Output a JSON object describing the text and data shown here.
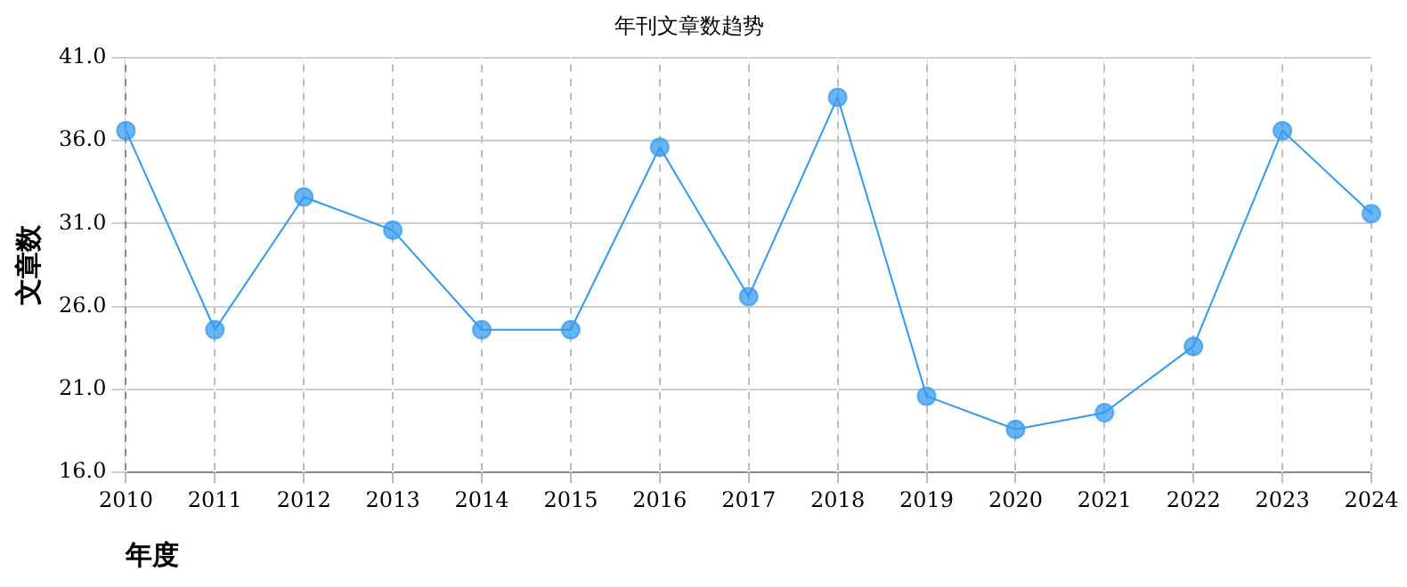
{
  "chart_data": {
    "type": "line",
    "title": "年刊文章数趋势",
    "xlabel": "年度",
    "ylabel": "文章数",
    "categories": [
      "2010",
      "2011",
      "2012",
      "2013",
      "2014",
      "2015",
      "2016",
      "2017",
      "2018",
      "2019",
      "2020",
      "2021",
      "2022",
      "2023",
      "2024"
    ],
    "series": [
      {
        "color": "#3399ee",
        "values": [
          36.6,
          24.6,
          32.6,
          30.6,
          24.6,
          24.6,
          35.6,
          26.6,
          38.6,
          20.6,
          18.6,
          19.6,
          23.6,
          36.6,
          31.6
        ]
      }
    ],
    "ylim": [
      16,
      41
    ],
    "yticks": [
      {
        "value": 16,
        "label": "16.0"
      },
      {
        "value": 21,
        "label": "21.0"
      },
      {
        "value": 26,
        "label": "26.0"
      },
      {
        "value": 31,
        "label": "31.0"
      },
      {
        "value": 36,
        "label": "36.0"
      },
      {
        "value": 41,
        "label": "41.0"
      }
    ],
    "grid": true,
    "marker": "circle",
    "line_style": "solid",
    "legend": false
  }
}
